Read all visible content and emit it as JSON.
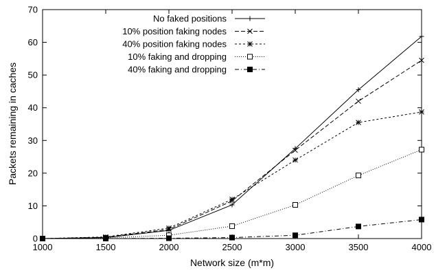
{
  "chart_data": {
    "type": "line",
    "title": "",
    "xlabel": "Network size (m*m)",
    "ylabel": "Packets remaining in caches",
    "x": [
      1000,
      1500,
      2000,
      2500,
      3000,
      3500,
      4000
    ],
    "xlim": [
      1000,
      4000
    ],
    "ylim": [
      0,
      70
    ],
    "xticks": [
      1000,
      1500,
      2000,
      2500,
      3000,
      3500,
      4000
    ],
    "yticks": [
      0,
      10,
      20,
      30,
      40,
      50,
      60,
      70
    ],
    "grid": false,
    "legend_position": "top-left",
    "series": [
      {
        "name": "No faked positions",
        "values": [
          0,
          0.3,
          2.5,
          10.3,
          27.5,
          45.5,
          61.8
        ],
        "color": "#000000",
        "dash": "",
        "marker": "plus"
      },
      {
        "name": "10% position faking nodes",
        "values": [
          0,
          0.4,
          2.8,
          11.5,
          27.0,
          42.0,
          54.5
        ],
        "color": "#000000",
        "dash": "6,3",
        "marker": "cross"
      },
      {
        "name": "40% position faking nodes",
        "values": [
          0,
          0.5,
          3.2,
          12.0,
          24.0,
          35.5,
          38.7
        ],
        "color": "#000000",
        "dash": "3,3",
        "marker": "star"
      },
      {
        "name": "10% faking and dropping",
        "values": [
          0,
          0.2,
          1.0,
          3.8,
          10.3,
          19.3,
          27.2
        ],
        "color": "#000000",
        "dash": "1,2",
        "marker": "square-open"
      },
      {
        "name": "40% faking and dropping",
        "values": [
          0,
          0.0,
          0.1,
          0.3,
          1.0,
          3.7,
          5.8
        ],
        "color": "#000000",
        "dash": "6,3,1,3",
        "marker": "square-filled"
      }
    ]
  }
}
